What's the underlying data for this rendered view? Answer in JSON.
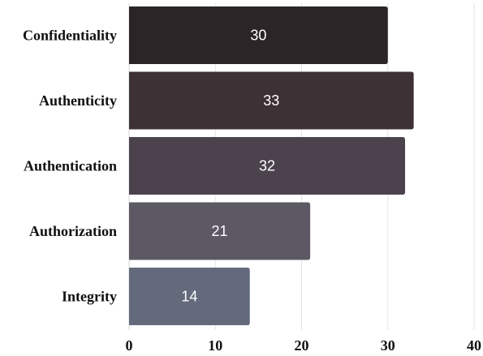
{
  "chart_data": {
    "type": "bar",
    "orientation": "horizontal",
    "title": "",
    "xlabel": "",
    "ylabel": "",
    "categories": [
      "Confidentiality",
      "Authenticity",
      "Authentication",
      "Authorization",
      "Integrity"
    ],
    "values": [
      30,
      33,
      32,
      21,
      14
    ],
    "xlim": [
      0,
      40
    ],
    "x_ticks": [
      0,
      10,
      20,
      30,
      40
    ],
    "grid": "vertical",
    "legend": "none",
    "data_labels": true,
    "colors": [
      "#2b2528",
      "#3d3136",
      "#4b424d",
      "#5c5864",
      "#636a7c"
    ]
  }
}
